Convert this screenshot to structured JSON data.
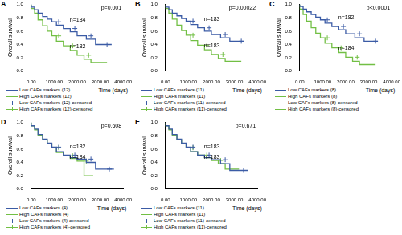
{
  "chart_data": [
    {
      "type": "line",
      "title": "A",
      "annotation": "p=0.001",
      "x_label": "Time (days)",
      "y_label": "Overall survival",
      "xlim": [
        0,
        4000
      ],
      "xticks": [
        {
          "value": 0,
          "label": "0.00"
        },
        {
          "value": 1000,
          "label": "1000.00"
        },
        {
          "value": 2000,
          "label": "2000.00"
        },
        {
          "value": 3000,
          "label": "3000.00"
        },
        {
          "value": 4000,
          "label": "4000.00"
        }
      ],
      "ylim": [
        0,
        1
      ],
      "yticks": [
        {
          "value": 0,
          "label": "0.0"
        },
        {
          "value": 0.2,
          "label": "0.2"
        },
        {
          "value": 0.4,
          "label": "0.4"
        },
        {
          "value": 0.6,
          "label": "0.6"
        },
        {
          "value": 0.8,
          "label": "0.8"
        },
        {
          "value": 1,
          "label": "1.0"
        }
      ],
      "grid": false,
      "series": [
        {
          "name": "Low CAFs markers (12)",
          "color": "#3b5ba5",
          "type": "step",
          "label": "n=184",
          "x": [
            0,
            150,
            300,
            500,
            700,
            900,
            1100,
            1400,
            1700,
            2000,
            2400,
            2800,
            3000,
            3500
          ],
          "values": [
            1,
            0.96,
            0.92,
            0.87,
            0.82,
            0.78,
            0.74,
            0.69,
            0.64,
            0.59,
            0.53,
            0.48,
            0.4,
            0.4
          ]
        },
        {
          "name": "High CAFs markers (12)",
          "color": "#72bf44",
          "type": "step",
          "label": "n=182",
          "x": [
            0,
            150,
            300,
            500,
            700,
            900,
            1100,
            1400,
            1700,
            2000,
            2300,
            2600,
            2900,
            3300
          ],
          "values": [
            1,
            0.94,
            0.87,
            0.77,
            0.68,
            0.6,
            0.53,
            0.45,
            0.38,
            0.31,
            0.24,
            0.18,
            0.13,
            0.13
          ]
        },
        {
          "name": "Low CAFs markers (12)-censored",
          "color": "#3b5ba5",
          "type": "scatter",
          "marker": "cross",
          "x": [
            1200,
            1900,
            2600,
            3300
          ],
          "values": [
            0.74,
            0.64,
            0.53,
            0.4
          ]
        },
        {
          "name": "High CAFs markers (12)-censored",
          "color": "#72bf44",
          "type": "scatter",
          "marker": "cross",
          "x": [
            1200,
            1800,
            2500
          ],
          "values": [
            0.53,
            0.38,
            0.24
          ]
        }
      ]
    },
    {
      "type": "line",
      "title": "B",
      "annotation": "p=0.00022",
      "x_label": "Time (days)",
      "y_label": "Overall survival",
      "xlim": [
        0,
        4000
      ],
      "xticks": [
        {
          "value": 0,
          "label": "0.00"
        },
        {
          "value": 1000,
          "label": "1000.00"
        },
        {
          "value": 2000,
          "label": "2000.00"
        },
        {
          "value": 3000,
          "label": "3000.00"
        },
        {
          "value": 4000,
          "label": "4000.00"
        }
      ],
      "ylim": [
        0,
        1
      ],
      "yticks": [
        {
          "value": 0,
          "label": "0.0"
        },
        {
          "value": 0.2,
          "label": "0.2"
        },
        {
          "value": 0.4,
          "label": "0.4"
        },
        {
          "value": 0.6,
          "label": "0.6"
        },
        {
          "value": 0.8,
          "label": "0.8"
        },
        {
          "value": 1,
          "label": "1.0"
        }
      ],
      "grid": false,
      "series": [
        {
          "name": "Low CAFs markers (11)",
          "color": "#3b5ba5",
          "type": "step",
          "label": "n=183",
          "x": [
            0,
            150,
            300,
            500,
            700,
            900,
            1100,
            1400,
            1700,
            2000,
            2400,
            2800,
            3000,
            3400
          ],
          "values": [
            1,
            0.96,
            0.92,
            0.87,
            0.83,
            0.79,
            0.75,
            0.7,
            0.65,
            0.6,
            0.55,
            0.5,
            0.45,
            0.45
          ]
        },
        {
          "name": "High CAFs markers (11)",
          "color": "#72bf44",
          "type": "step",
          "label": "n=183",
          "x": [
            0,
            150,
            300,
            500,
            700,
            900,
            1100,
            1400,
            1700,
            2000,
            2300,
            2600,
            2900,
            3300
          ],
          "values": [
            1,
            0.94,
            0.87,
            0.78,
            0.69,
            0.61,
            0.54,
            0.46,
            0.39,
            0.32,
            0.25,
            0.19,
            0.15,
            0.15
          ]
        },
        {
          "name": "Low CAFs markers (11)-censored",
          "color": "#3b5ba5",
          "type": "scatter",
          "marker": "cross",
          "x": [
            1200,
            1900,
            2600,
            3300
          ],
          "values": [
            0.75,
            0.65,
            0.55,
            0.45
          ]
        },
        {
          "name": "High CAFs markers (11)-censored",
          "color": "#72bf44",
          "type": "scatter",
          "marker": "cross",
          "x": [
            1200,
            1800,
            2500
          ],
          "values": [
            0.54,
            0.39,
            0.25
          ]
        }
      ]
    },
    {
      "type": "line",
      "title": "C",
      "annotation": "p<0.0001",
      "x_label": "Time (days)",
      "y_label": "Overall survival",
      "xlim": [
        0,
        4000
      ],
      "xticks": [
        {
          "value": 0,
          "label": "0.00"
        },
        {
          "value": 1000,
          "label": "1000.00"
        },
        {
          "value": 2000,
          "label": "2000.00"
        },
        {
          "value": 3000,
          "label": "3000.00"
        },
        {
          "value": 4000,
          "label": "4000.00"
        }
      ],
      "ylim": [
        0,
        1
      ],
      "yticks": [
        {
          "value": 0,
          "label": "0.0"
        },
        {
          "value": 0.2,
          "label": "0.2"
        },
        {
          "value": 0.4,
          "label": "0.4"
        },
        {
          "value": 0.6,
          "label": "0.6"
        },
        {
          "value": 0.8,
          "label": "0.8"
        },
        {
          "value": 1,
          "label": "1.0"
        }
      ],
      "grid": false,
      "series": [
        {
          "name": "Low CAFs markers (8)",
          "color": "#3b5ba5",
          "type": "step",
          "label": "n=182",
          "x": [
            0,
            150,
            300,
            500,
            700,
            900,
            1100,
            1400,
            1700,
            2000,
            2400,
            2800,
            3000,
            3400
          ],
          "values": [
            1,
            0.97,
            0.93,
            0.89,
            0.85,
            0.81,
            0.77,
            0.72,
            0.67,
            0.62,
            0.56,
            0.5,
            0.45,
            0.45
          ]
        },
        {
          "name": "High CAFs markers (8)",
          "color": "#72bf44",
          "type": "step",
          "label": "n=184",
          "x": [
            0,
            150,
            300,
            500,
            700,
            900,
            1100,
            1400,
            1700,
            2000,
            2300,
            2600,
            2900,
            3300
          ],
          "values": [
            1,
            0.93,
            0.85,
            0.75,
            0.65,
            0.57,
            0.5,
            0.42,
            0.35,
            0.28,
            0.21,
            0.15,
            0.1,
            0.1
          ]
        },
        {
          "name": "Low CAFs markers (8)-censored",
          "color": "#3b5ba5",
          "type": "scatter",
          "marker": "cross",
          "x": [
            1200,
            1900,
            2600,
            3300
          ],
          "values": [
            0.77,
            0.67,
            0.56,
            0.45
          ]
        },
        {
          "name": "High CAFs markers (8)-censored",
          "color": "#72bf44",
          "type": "scatter",
          "marker": "cross",
          "x": [
            1200,
            1800,
            2500
          ],
          "values": [
            0.5,
            0.35,
            0.21
          ]
        }
      ]
    },
    {
      "type": "line",
      "title": "D",
      "annotation": "p=0.608",
      "x_label": "Time (days)",
      "y_label": "Overall survival",
      "xlim": [
        0,
        4000
      ],
      "xticks": [
        {
          "value": 0,
          "label": "0.00"
        },
        {
          "value": 1000,
          "label": "1000.00"
        },
        {
          "value": 2000,
          "label": "2000.00"
        },
        {
          "value": 3000,
          "label": "3000.00"
        },
        {
          "value": 4000,
          "label": "4000.00"
        }
      ],
      "ylim": [
        0,
        1
      ],
      "yticks": [
        {
          "value": 0,
          "label": "0.0"
        },
        {
          "value": 0.2,
          "label": "0.2"
        },
        {
          "value": 0.4,
          "label": "0.4"
        },
        {
          "value": 0.6,
          "label": "0.6"
        },
        {
          "value": 0.8,
          "label": "0.8"
        },
        {
          "value": 1,
          "label": "1.0"
        }
      ],
      "grid": false,
      "series": [
        {
          "name": "Low CAFs markers (4)",
          "color": "#3b5ba5",
          "type": "step",
          "label": "n=182",
          "x": [
            0,
            150,
            300,
            500,
            700,
            900,
            1100,
            1400,
            1700,
            2000,
            2400,
            2800,
            3200,
            3600
          ],
          "values": [
            1,
            0.95,
            0.9,
            0.82,
            0.75,
            0.69,
            0.63,
            0.56,
            0.51,
            0.47,
            0.45,
            0.4,
            0.3,
            0.3
          ]
        },
        {
          "name": "High CAFs markers (4)",
          "color": "#72bf44",
          "type": "step",
          "label": "n=184",
          "x": [
            0,
            150,
            300,
            500,
            700,
            900,
            1100,
            1400,
            1700,
            2000,
            2300,
            2500,
            2700
          ],
          "values": [
            1,
            0.95,
            0.89,
            0.81,
            0.74,
            0.68,
            0.62,
            0.55,
            0.5,
            0.46,
            0.42,
            0.2,
            0.2
          ]
        },
        {
          "name": "Low CAFs markers (4)-censored",
          "color": "#3b5ba5",
          "type": "scatter",
          "marker": "cross",
          "x": [
            1200,
            1900,
            2600,
            3400
          ],
          "values": [
            0.63,
            0.51,
            0.45,
            0.3
          ]
        },
        {
          "name": "High CAFs markers (4)-censored",
          "color": "#72bf44",
          "type": "scatter",
          "marker": "cross",
          "x": [
            1200,
            1800,
            2400
          ],
          "values": [
            0.62,
            0.5,
            0.42
          ]
        }
      ]
    },
    {
      "type": "line",
      "title": "E",
      "annotation": "p=0.671",
      "x_label": "Time (days)",
      "y_label": "Overall survival",
      "xlim": [
        0,
        4000
      ],
      "xticks": [
        {
          "value": 0,
          "label": "0.00"
        },
        {
          "value": 1000,
          "label": "1000.00"
        },
        {
          "value": 2000,
          "label": "2000.00"
        },
        {
          "value": 3000,
          "label": "3000.00"
        },
        {
          "value": 4000,
          "label": "4000.00"
        }
      ],
      "ylim": [
        0,
        1
      ],
      "yticks": [
        {
          "value": 0,
          "label": "0.0"
        },
        {
          "value": 0.2,
          "label": "0.2"
        },
        {
          "value": 0.4,
          "label": "0.4"
        },
        {
          "value": 0.6,
          "label": "0.6"
        },
        {
          "value": 0.8,
          "label": "0.8"
        },
        {
          "value": 1,
          "label": "1.0"
        }
      ],
      "grid": false,
      "series": [
        {
          "name": "Low CAFs markers (11)",
          "color": "#3b5ba5",
          "type": "step",
          "label": "n=183",
          "x": [
            0,
            150,
            300,
            500,
            700,
            900,
            1100,
            1400,
            1700,
            2000,
            2400,
            2800,
            3200,
            3600
          ],
          "values": [
            1,
            0.95,
            0.9,
            0.82,
            0.75,
            0.69,
            0.63,
            0.56,
            0.51,
            0.47,
            0.44,
            0.38,
            0.28,
            0.28
          ]
        },
        {
          "name": "High CAFs markers (11)",
          "color": "#72bf44",
          "type": "step",
          "label": "n=183",
          "x": [
            0,
            150,
            300,
            500,
            700,
            900,
            1100,
            1400,
            1700,
            2000,
            2300,
            2600,
            2900,
            3200
          ],
          "values": [
            1,
            0.95,
            0.89,
            0.81,
            0.74,
            0.68,
            0.62,
            0.56,
            0.51,
            0.47,
            0.43,
            0.38,
            0.3,
            0.3
          ]
        },
        {
          "name": "Low CAFs markers (11)-censored",
          "color": "#3b5ba5",
          "type": "scatter",
          "marker": "cross",
          "x": [
            1200,
            1900,
            2600,
            3400
          ],
          "values": [
            0.63,
            0.51,
            0.44,
            0.28
          ]
        },
        {
          "name": "High CAFs markers (11)-censored",
          "color": "#72bf44",
          "type": "scatter",
          "marker": "cross",
          "x": [
            1200,
            1800,
            2400
          ],
          "values": [
            0.62,
            0.51,
            0.43
          ]
        }
      ]
    }
  ]
}
